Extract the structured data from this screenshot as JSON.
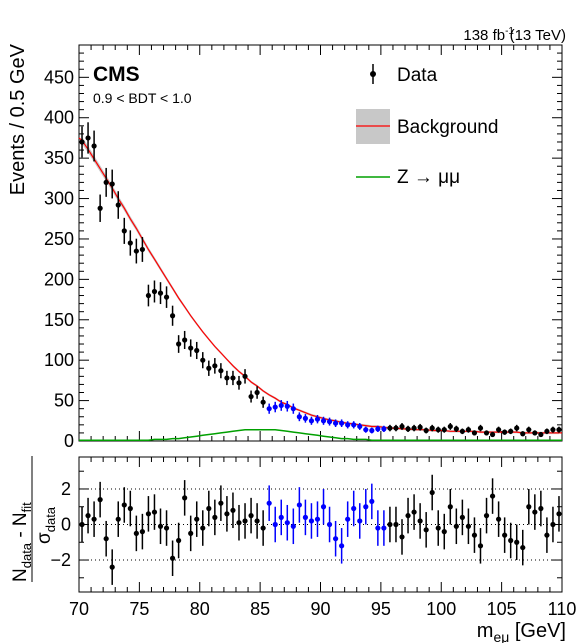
{
  "header": {
    "lumi": "138 fb",
    "lumi_exp": "-1",
    "energy": "(13 TeV)"
  },
  "labels": {
    "experiment": "CMS",
    "category": "0.9 < BDT < 1.0"
  },
  "legend": {
    "data": "Data",
    "background": "Background",
    "signal": "Z → μμ"
  },
  "axes": {
    "ylabel_main": "Events / 0.5 GeV",
    "ylabel_ratio": {
      "num": "N",
      "num_sub1": "data",
      "minus": " - N",
      "num_sub2": "fit",
      "den": "σ",
      "den_sub": "data"
    },
    "xlabel": {
      "m": "m",
      "sub": "eμ",
      "unit": " [GeV]"
    }
  },
  "colors": {
    "data": "#000000",
    "blinded_data": "#0000ff",
    "background_line": "#ff0000",
    "background_band": "#c8c8c8",
    "signal_line": "#00a000"
  },
  "chart_data": [
    {
      "type": "scatter",
      "title": "",
      "xlabel": "m_eμ [GeV]",
      "ylabel": "Events / 0.5 GeV",
      "xlim": [
        70,
        110
      ],
      "ylim": [
        0,
        490
      ],
      "xticks": [
        70,
        75,
        80,
        85,
        90,
        95,
        100,
        105,
        110
      ],
      "yticks": [
        0,
        50,
        100,
        150,
        200,
        250,
        300,
        350,
        400,
        450
      ],
      "legend_position": "top-right",
      "bin_width": 0.5,
      "x_start": 70.25,
      "blinded_range": [
        85.5,
        95.5
      ],
      "series": [
        {
          "name": "Data",
          "values": [
            370,
            375,
            365,
            288,
            320,
            318,
            292,
            260,
            245,
            235,
            237,
            180,
            185,
            183,
            178,
            155,
            120,
            125,
            115,
            112,
            100,
            90,
            93,
            87,
            78,
            78,
            72,
            80,
            55,
            60,
            48,
            40,
            42,
            44,
            43,
            40,
            30,
            28,
            25,
            27,
            25,
            24,
            22,
            22,
            20,
            20,
            18,
            14,
            13,
            15,
            15,
            16,
            16,
            18,
            15,
            16,
            17,
            13,
            16,
            14,
            14,
            18,
            15,
            12,
            14,
            10,
            16,
            10,
            8,
            14,
            11,
            12,
            16,
            9,
            14,
            10,
            8,
            12,
            14,
            14
          ]
        },
        {
          "name": "Background",
          "values": [
            372,
            361,
            349,
            337,
            325,
            313,
            300,
            288,
            275,
            263,
            250,
            237,
            225,
            213,
            201,
            189,
            177,
            166,
            155,
            145,
            135,
            126,
            117,
            109,
            101,
            93,
            86,
            80,
            73,
            68,
            62,
            57,
            53,
            48,
            45,
            41,
            38,
            35,
            32,
            30,
            28,
            26,
            25,
            23,
            22,
            21,
            20,
            19,
            18,
            18,
            17,
            16,
            16,
            15,
            15,
            14,
            14,
            14,
            13,
            13,
            13,
            12,
            12,
            12,
            12,
            12,
            11,
            11,
            11,
            11,
            11,
            11,
            11,
            10,
            10,
            10,
            10,
            10,
            10,
            10
          ]
        },
        {
          "name": "Z → μμ",
          "values": [
            1,
            1,
            1,
            1,
            1,
            1,
            1,
            1,
            1,
            1,
            1,
            1,
            2,
            2,
            2,
            3,
            3,
            4,
            5,
            6,
            7,
            8,
            9,
            10,
            11,
            12,
            13,
            14,
            14,
            14,
            14,
            14,
            14,
            13,
            12,
            11,
            10,
            9,
            8,
            7,
            6,
            5,
            4,
            3,
            3,
            2,
            2,
            2,
            1,
            1,
            1,
            1,
            1,
            1,
            1,
            1,
            1,
            1,
            1,
            1,
            1,
            1,
            1,
            1,
            1,
            1,
            1,
            1,
            1,
            1,
            1,
            1,
            1,
            1,
            1,
            1,
            1,
            1,
            1,
            1
          ]
        }
      ]
    },
    {
      "type": "scatter",
      "title": "",
      "xlabel": "m_eμ [GeV]",
      "ylabel": "(N_data - N_fit) / σ_data",
      "xlim": [
        70,
        110
      ],
      "ylim": [
        -3.8,
        3.8
      ],
      "yticks": [
        -2,
        0,
        2
      ],
      "dotted_lines": [
        -2,
        0,
        2
      ],
      "series": [
        {
          "name": "Pull",
          "values": [
            0.0,
            0.5,
            0.3,
            1.4,
            -0.8,
            -2.4,
            0.3,
            1.1,
            0.9,
            -0.5,
            -0.4,
            0.6,
            0.7,
            -0.1,
            -0.2,
            -1.9,
            -0.9,
            1.5,
            -0.5,
            0.3,
            -0.2,
            0.9,
            0.4,
            1.2,
            0.6,
            0.8,
            0.1,
            0.2,
            0.5,
            0.2,
            -0.2,
            1.2,
            0.0,
            0.4,
            0.1,
            -0.1,
            1.1,
            0.4,
            0.2,
            0.3,
            1.0,
            0.0,
            -0.8,
            -1.2,
            0.3,
            0.9,
            0.2,
            1.0,
            1.3,
            -0.2,
            -0.2,
            0.0,
            0.0,
            -0.7,
            0.5,
            0.7,
            0.2,
            -0.3,
            1.8,
            -0.2,
            -0.4,
            1.0,
            -0.1,
            0.4,
            -0.1,
            -0.6,
            -1.2,
            0.5,
            1.6,
            0.3,
            -0.6,
            -0.9,
            -1.0,
            -1.3,
            1.0,
            0.7,
            0.9,
            -0.6,
            0.0,
            0.6
          ]
        }
      ]
    }
  ]
}
